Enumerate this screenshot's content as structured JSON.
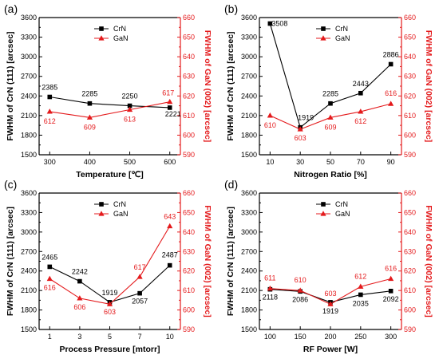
{
  "colors": {
    "crn": "#000000",
    "gan": "#e41a1c"
  },
  "chart_data": [
    {
      "type": "line",
      "panel_label": "(a)",
      "xlabel": "Temperature [℃]",
      "ylabel": "FWHM of CrN (111) [arcsec]",
      "ylabel_right": "FWHM of GaN (002) [arcsec]",
      "x_tick_labels": [
        "300",
        "400",
        "500",
        "600"
      ],
      "ylim": [
        1500,
        3600
      ],
      "y_ticks": [
        1500,
        1800,
        2100,
        2400,
        2700,
        3000,
        3300,
        3600
      ],
      "y2lim": [
        590,
        660
      ],
      "y2_ticks": [
        590,
        600,
        610,
        620,
        630,
        640,
        650,
        660
      ],
      "legend": {
        "position": "top-center",
        "entries": [
          "CrN",
          "GaN"
        ]
      },
      "series": [
        {
          "name": "CrN",
          "axis": "left",
          "values": [
            2385,
            2285,
            2250,
            2221
          ],
          "labels": [
            "2385",
            "2285",
            "2250",
            "2221"
          ]
        },
        {
          "name": "GaN",
          "axis": "right",
          "values": [
            612,
            609,
            613,
            617
          ],
          "labels": [
            "612",
            "609",
            "613",
            "617"
          ]
        }
      ]
    },
    {
      "type": "line",
      "panel_label": "(b)",
      "xlabel": "Nitrogen Ratio [%]",
      "ylabel": "FWHM of CrN (111) [arcsec]",
      "ylabel_right": "FWHM of GaN (002) [arcsec]",
      "x_tick_labels": [
        "10",
        "30",
        "50",
        "70",
        "90"
      ],
      "ylim": [
        1500,
        3600
      ],
      "y_ticks": [
        1500,
        1800,
        2100,
        2400,
        2700,
        3000,
        3300,
        3600
      ],
      "y2lim": [
        590,
        660
      ],
      "y2_ticks": [
        590,
        600,
        610,
        620,
        630,
        640,
        650,
        660
      ],
      "legend": {
        "position": "top-right",
        "entries": [
          "CrN",
          "GaN"
        ]
      },
      "series": [
        {
          "name": "CrN",
          "axis": "left",
          "values": [
            3508,
            1919,
            2285,
            2443,
            2886
          ],
          "labels": [
            "3508",
            "1919",
            "2285",
            "2443",
            "2886"
          ]
        },
        {
          "name": "GaN",
          "axis": "right",
          "values": [
            610,
            603,
            609,
            612,
            616
          ],
          "labels": [
            "610",
            "603",
            "609",
            "612",
            "616"
          ]
        }
      ]
    },
    {
      "type": "line",
      "panel_label": "(c)",
      "xlabel": "Process Pressure [mtorr]",
      "ylabel": "FWHM of CrN (111) [arcsec]",
      "ylabel_right": "FWHM of GaN (002) [arcsec]",
      "x_tick_labels": [
        "1",
        "3",
        "5",
        "7",
        "10"
      ],
      "ylim": [
        1500,
        3600
      ],
      "y_ticks": [
        1500,
        1800,
        2100,
        2400,
        2700,
        3000,
        3300,
        3600
      ],
      "y2lim": [
        590,
        660
      ],
      "y2_ticks": [
        590,
        600,
        610,
        620,
        630,
        640,
        650,
        660
      ],
      "legend": {
        "position": "top-center",
        "entries": [
          "CrN",
          "GaN"
        ]
      },
      "series": [
        {
          "name": "CrN",
          "axis": "left",
          "values": [
            2465,
            2242,
            1919,
            2057,
            2487
          ],
          "labels": [
            "2465",
            "2242",
            "1919",
            "2057",
            "2487"
          ]
        },
        {
          "name": "GaN",
          "axis": "right",
          "values": [
            616,
            606,
            603,
            617,
            643
          ],
          "labels": [
            "616",
            "606",
            "603",
            "617",
            "643"
          ]
        }
      ]
    },
    {
      "type": "line",
      "panel_label": "(d)",
      "xlabel": "RF Power [W]",
      "ylabel": "FWHM of CrN (111) [arcsec]",
      "ylabel_right": "FWHM of GaN (002) [arcsec]",
      "x_tick_labels": [
        "100",
        "150",
        "200",
        "250",
        "300"
      ],
      "ylim": [
        1500,
        3600
      ],
      "y_ticks": [
        1500,
        1800,
        2100,
        2400,
        2700,
        3000,
        3300,
        3600
      ],
      "y2lim": [
        590,
        660
      ],
      "y2_ticks": [
        590,
        600,
        610,
        620,
        630,
        640,
        650,
        660
      ],
      "legend": {
        "position": "top-center",
        "entries": [
          "CrN",
          "GaN"
        ]
      },
      "series": [
        {
          "name": "CrN",
          "axis": "left",
          "values": [
            2118,
            2086,
            1919,
            2035,
            2092
          ],
          "labels": [
            "2118",
            "2086",
            "1919",
            "2035",
            "2092"
          ]
        },
        {
          "name": "GaN",
          "axis": "right",
          "values": [
            611,
            610,
            603,
            612,
            616
          ],
          "labels": [
            "611",
            "610",
            "603",
            "612",
            "616"
          ]
        }
      ]
    }
  ]
}
